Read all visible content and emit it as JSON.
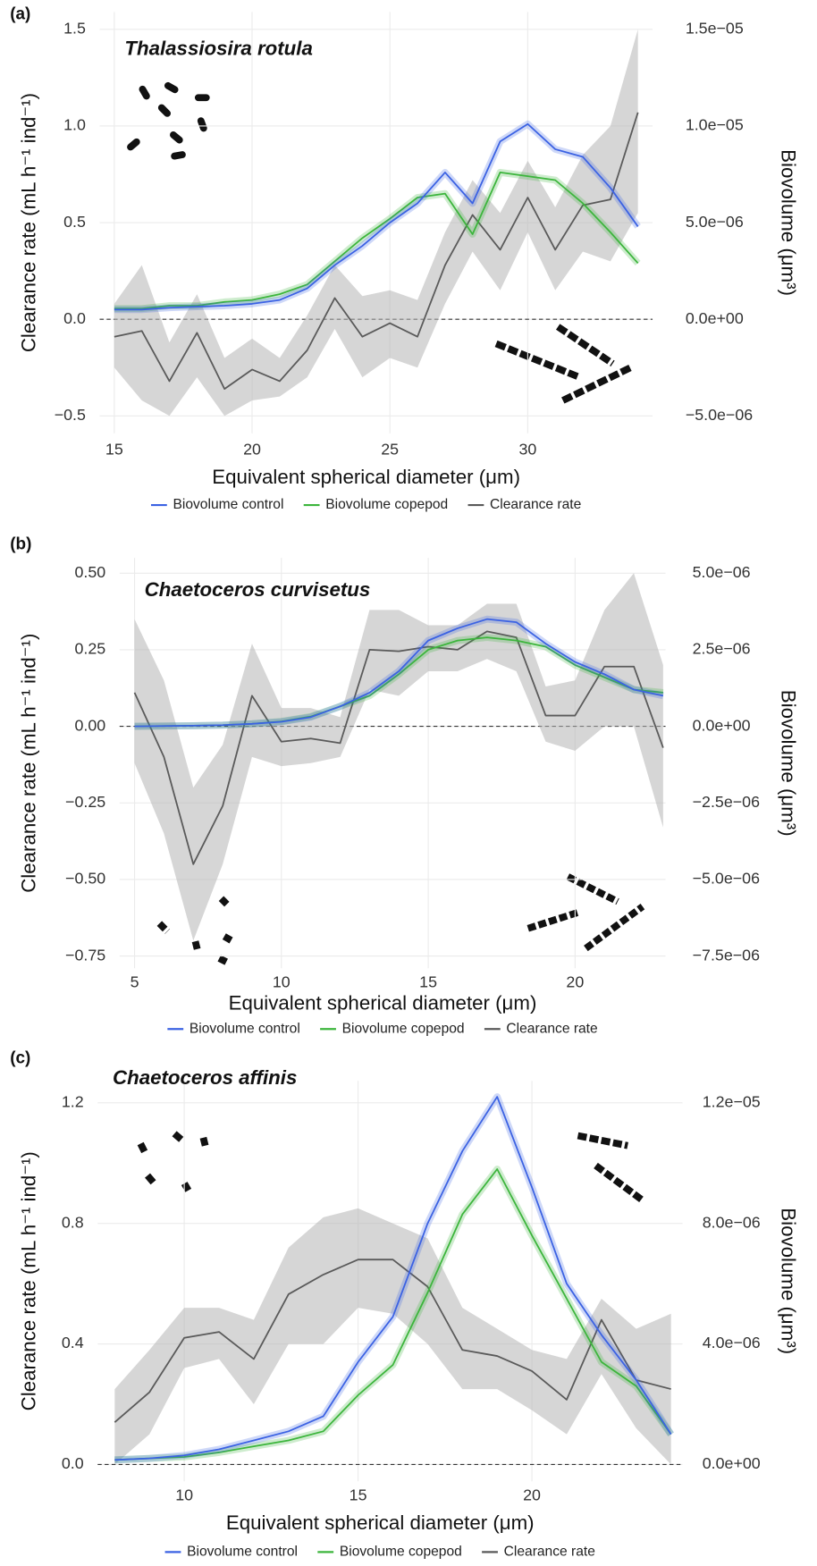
{
  "chart_data": [
    {
      "type": "line",
      "panel": "(a)",
      "title": "Thalassiosira rotula",
      "xlabel": "Equivalent spherical diameter (μm)",
      "ylabel": "Clearance rate (mL h⁻¹ ind⁻¹)",
      "y2label": "Biovolume (μm³)",
      "x": [
        15,
        16,
        17,
        18,
        19,
        20,
        21,
        22,
        23,
        24,
        25,
        26,
        27,
        28,
        29,
        30,
        31,
        32,
        33,
        34
      ],
      "xlim": [
        14.47,
        34.53
      ],
      "xticks": [
        15,
        20,
        25,
        30
      ],
      "ylim": [
        -0.59,
        1.59
      ],
      "yticks": [
        {
          "value": -0.5,
          "label": "−0.5"
        },
        {
          "value": 0,
          "label": "0.0"
        },
        0.5,
        {
          "value": 1,
          "label": "1.0"
        },
        1.5
      ],
      "y2lim": [
        -5.9e-06,
        1.59e-05
      ],
      "y2ticks": [
        {
          "value": -5e-06,
          "label": "−5.0e−06"
        },
        {
          "value": 0,
          "label": "0.0e+00"
        },
        {
          "value": 5e-06,
          "label": "5.0e−06"
        },
        {
          "value": 1e-05,
          "label": "1.0e−05"
        },
        {
          "value": 1.5e-05,
          "label": "1.5e−05"
        }
      ],
      "grid": true,
      "legend": "bottom",
      "series": [
        {
          "name": "Biovolume control",
          "color": "#3b62e3",
          "axis": "y2",
          "values": [
            5e-07,
            5e-07,
            6e-07,
            6.5e-07,
            7e-07,
            8e-07,
            1e-06,
            1.6e-06,
            2.8e-06,
            3.8e-06,
            5e-06,
            6e-06,
            7.6e-06,
            6e-06,
            9.2e-06,
            1.01e-05,
            8.8e-06,
            8.4e-06,
            6.8e-06,
            4.8e-06
          ]
        },
        {
          "name": "Biovolume copepod",
          "color": "#3cb53c",
          "axis": "y2",
          "values": [
            5.5e-07,
            5.5e-07,
            7e-07,
            7e-07,
            9e-07,
            1e-06,
            1.3e-06,
            1.8e-06,
            3e-06,
            4.2e-06,
            5.2e-06,
            6.3e-06,
            6.5e-06,
            4.4e-06,
            7.6e-06,
            7.4e-06,
            7.2e-06,
            6e-06,
            4.5e-06,
            2.9e-06
          ]
        },
        {
          "name": "Clearance rate",
          "color": "#5a5a5a",
          "values": [
            -0.09,
            -0.06,
            -0.32,
            -0.07,
            -0.36,
            -0.26,
            -0.32,
            -0.16,
            0.11,
            -0.09,
            -0.02,
            -0.09,
            0.28,
            0.54,
            0.36,
            0.63,
            0.36,
            0.59,
            0.62,
            1.07
          ],
          "lower": [
            -0.25,
            -0.42,
            -0.5,
            -0.3,
            -0.5,
            -0.42,
            -0.4,
            -0.3,
            -0.05,
            -0.3,
            -0.2,
            -0.25,
            0.08,
            0.35,
            0.15,
            0.45,
            0.15,
            0.35,
            0.3,
            0.55
          ],
          "upper": [
            0.08,
            0.28,
            -0.12,
            0.13,
            -0.2,
            -0.1,
            -0.2,
            0.02,
            0.28,
            0.12,
            0.15,
            0.1,
            0.45,
            0.72,
            0.55,
            0.82,
            0.58,
            0.85,
            1.0,
            1.5
          ]
        }
      ]
    },
    {
      "type": "line",
      "panel": "(b)",
      "title": "Chaetoceros curvisetus",
      "xlabel": "Equivalent spherical diameter (μm)",
      "ylabel": "Clearance rate (mL h⁻¹ ind⁻¹)",
      "y2label": "Biovolume (μm³)",
      "x": [
        5,
        6,
        7,
        8,
        9,
        10,
        11,
        12,
        13,
        14,
        15,
        16,
        17,
        18,
        19,
        20,
        21,
        22,
        23
      ],
      "xlim": [
        4.49,
        23.08
      ],
      "xticks": [
        5,
        10,
        15,
        20
      ],
      "ylim": [
        -0.79,
        0.55
      ],
      "yticks": [
        {
          "value": -0.75,
          "label": "−0.75"
        },
        {
          "value": -0.5,
          "label": "−0.50"
        },
        {
          "value": -0.25,
          "label": "−0.25"
        },
        {
          "value": 0,
          "label": "0.00"
        },
        0.25,
        {
          "value": 0.5,
          "label": "0.50"
        }
      ],
      "y2lim": [
        -7.9e-06,
        5.5e-06
      ],
      "y2ticks": [
        {
          "value": -7.5e-06,
          "label": "−7.5e−06"
        },
        {
          "value": -5e-06,
          "label": "−5.0e−06"
        },
        {
          "value": -2.5e-06,
          "label": "−2.5e−06"
        },
        {
          "value": 0,
          "label": "0.0e+00"
        },
        {
          "value": 2.5e-06,
          "label": "2.5e−06"
        },
        {
          "value": 5e-06,
          "label": "5.0e−06"
        }
      ],
      "grid": true,
      "legend": "bottom",
      "series": [
        {
          "name": "Biovolume control",
          "color": "#3b62e3",
          "axis": "y2",
          "values": [
            0,
            1e-08,
            2e-08,
            4e-08,
            8e-08,
            1.5e-07,
            3e-07,
            6.5e-07,
            1.1e-06,
            1.8e-06,
            2.8e-06,
            3.2e-06,
            3.5e-06,
            3.4e-06,
            2.7e-06,
            2.1e-06,
            1.7e-06,
            1.2e-06,
            1e-06
          ]
        },
        {
          "name": "Biovolume copepod",
          "color": "#3cb53c",
          "axis": "y2",
          "values": [
            0,
            1e-08,
            2e-08,
            4e-08,
            8e-08,
            1.6e-07,
            3.2e-07,
            6.5e-07,
            1e-06,
            1.7e-06,
            2.5e-06,
            2.8e-06,
            2.9e-06,
            2.8e-06,
            2.6e-06,
            2e-06,
            1.6e-06,
            1.2e-06,
            1.1e-06
          ]
        },
        {
          "name": "Clearance rate",
          "color": "#5a5a5a",
          "values": [
            0.11,
            -0.1,
            -0.45,
            -0.26,
            0.1,
            -0.05,
            -0.04,
            -0.055,
            0.25,
            0.245,
            0.26,
            0.25,
            0.31,
            0.29,
            0.035,
            0.035,
            0.195,
            0.195,
            -0.07
          ],
          "lower": [
            -0.12,
            -0.35,
            -0.7,
            -0.45,
            -0.1,
            -0.13,
            -0.12,
            -0.1,
            0.12,
            0.1,
            0.18,
            0.18,
            0.22,
            0.18,
            -0.05,
            -0.08,
            0.0,
            0.0,
            -0.33
          ],
          "upper": [
            0.35,
            0.15,
            -0.2,
            -0.06,
            0.27,
            0.06,
            0.06,
            0.03,
            0.38,
            0.38,
            0.33,
            0.33,
            0.4,
            0.4,
            0.13,
            0.15,
            0.38,
            0.5,
            0.2
          ]
        }
      ]
    },
    {
      "type": "line",
      "panel": "(c)",
      "title": "Chaetoceros affinis",
      "xlabel": "Equivalent spherical diameter (μm)",
      "ylabel": "Clearance rate (mL h⁻¹ ind⁻¹)",
      "y2label": "Biovolume (μm³)",
      "x": [
        8,
        9,
        10,
        11,
        12,
        13,
        14,
        15,
        16,
        17,
        18,
        19,
        20,
        21,
        22,
        23,
        24
      ],
      "xlim": [
        7.51,
        24.33
      ],
      "xticks": [
        10,
        15,
        20
      ],
      "ylim": [
        -0.056,
        1.273
      ],
      "yticks": [
        {
          "value": 0,
          "label": "0.0"
        },
        0.4,
        0.8,
        1.2
      ],
      "y2lim": [
        -5.6e-07,
        1.273e-05
      ],
      "y2ticks": [
        {
          "value": 0,
          "label": "0.0e+00"
        },
        {
          "value": 4e-06,
          "label": "4.0e−06"
        },
        {
          "value": 8e-06,
          "label": "8.0e−06"
        },
        {
          "value": 1.2e-05,
          "label": "1.2e−05"
        }
      ],
      "grid": true,
      "legend": "bottom",
      "series": [
        {
          "name": "Biovolume control",
          "color": "#3b62e3",
          "axis": "y2",
          "values": [
            1.5e-07,
            2e-07,
            3e-07,
            5e-07,
            8e-07,
            1.1e-06,
            1.6e-06,
            3.4e-06,
            4.9e-06,
            8e-06,
            1.04e-05,
            1.22e-05,
            9.2e-06,
            6e-06,
            4.3e-06,
            2.8e-06,
            1e-06
          ]
        },
        {
          "name": "Biovolume copepod",
          "color": "#3cb53c",
          "axis": "y2",
          "values": [
            1.5e-07,
            2e-07,
            2.5e-07,
            4e-07,
            6e-07,
            8e-07,
            1.1e-06,
            2.3e-06,
            3.3e-06,
            5.7e-06,
            8.3e-06,
            9.8e-06,
            7.6e-06,
            5.5e-06,
            3.4e-06,
            2.6e-06,
            1e-06
          ]
        },
        {
          "name": "Clearance rate",
          "color": "#5a5a5a",
          "values": [
            0.14,
            0.24,
            0.42,
            0.44,
            0.35,
            0.565,
            0.63,
            0.68,
            0.68,
            0.59,
            0.38,
            0.36,
            0.31,
            0.215,
            0.48,
            0.28,
            0.25
          ],
          "lower": [
            0,
            0.1,
            0.32,
            0.35,
            0.2,
            0.4,
            0.4,
            0.52,
            0.5,
            0.4,
            0.25,
            0.25,
            0.18,
            0.1,
            0.3,
            0.12,
            0
          ],
          "upper": [
            0.25,
            0.38,
            0.52,
            0.52,
            0.48,
            0.72,
            0.82,
            0.85,
            0.8,
            0.75,
            0.52,
            0.45,
            0.38,
            0.35,
            0.55,
            0.45,
            0.5
          ]
        }
      ]
    }
  ]
}
